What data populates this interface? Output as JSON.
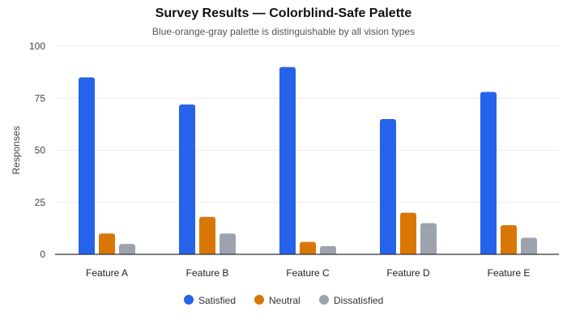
{
  "chart_data": {
    "type": "bar",
    "title": "Survey Results — Colorblind-Safe Palette",
    "subtitle": "Blue-orange-gray palette is distinguishable by all vision types",
    "xlabel": "",
    "ylabel": "Responses",
    "ylim": [
      0,
      100
    ],
    "yticks": [
      0,
      25,
      50,
      75,
      100
    ],
    "grid": true,
    "legend_position": "bottom",
    "categories": [
      "Feature A",
      "Feature B",
      "Feature C",
      "Feature D",
      "Feature E"
    ],
    "series": [
      {
        "name": "Satisfied",
        "color": "#2563eb",
        "values": [
          85,
          72,
          90,
          65,
          78
        ]
      },
      {
        "name": "Neutral",
        "color": "#d97706",
        "values": [
          10,
          18,
          6,
          20,
          14
        ]
      },
      {
        "name": "Dissatisfied",
        "color": "#9ca3af",
        "values": [
          5,
          10,
          4,
          15,
          8
        ]
      }
    ]
  }
}
